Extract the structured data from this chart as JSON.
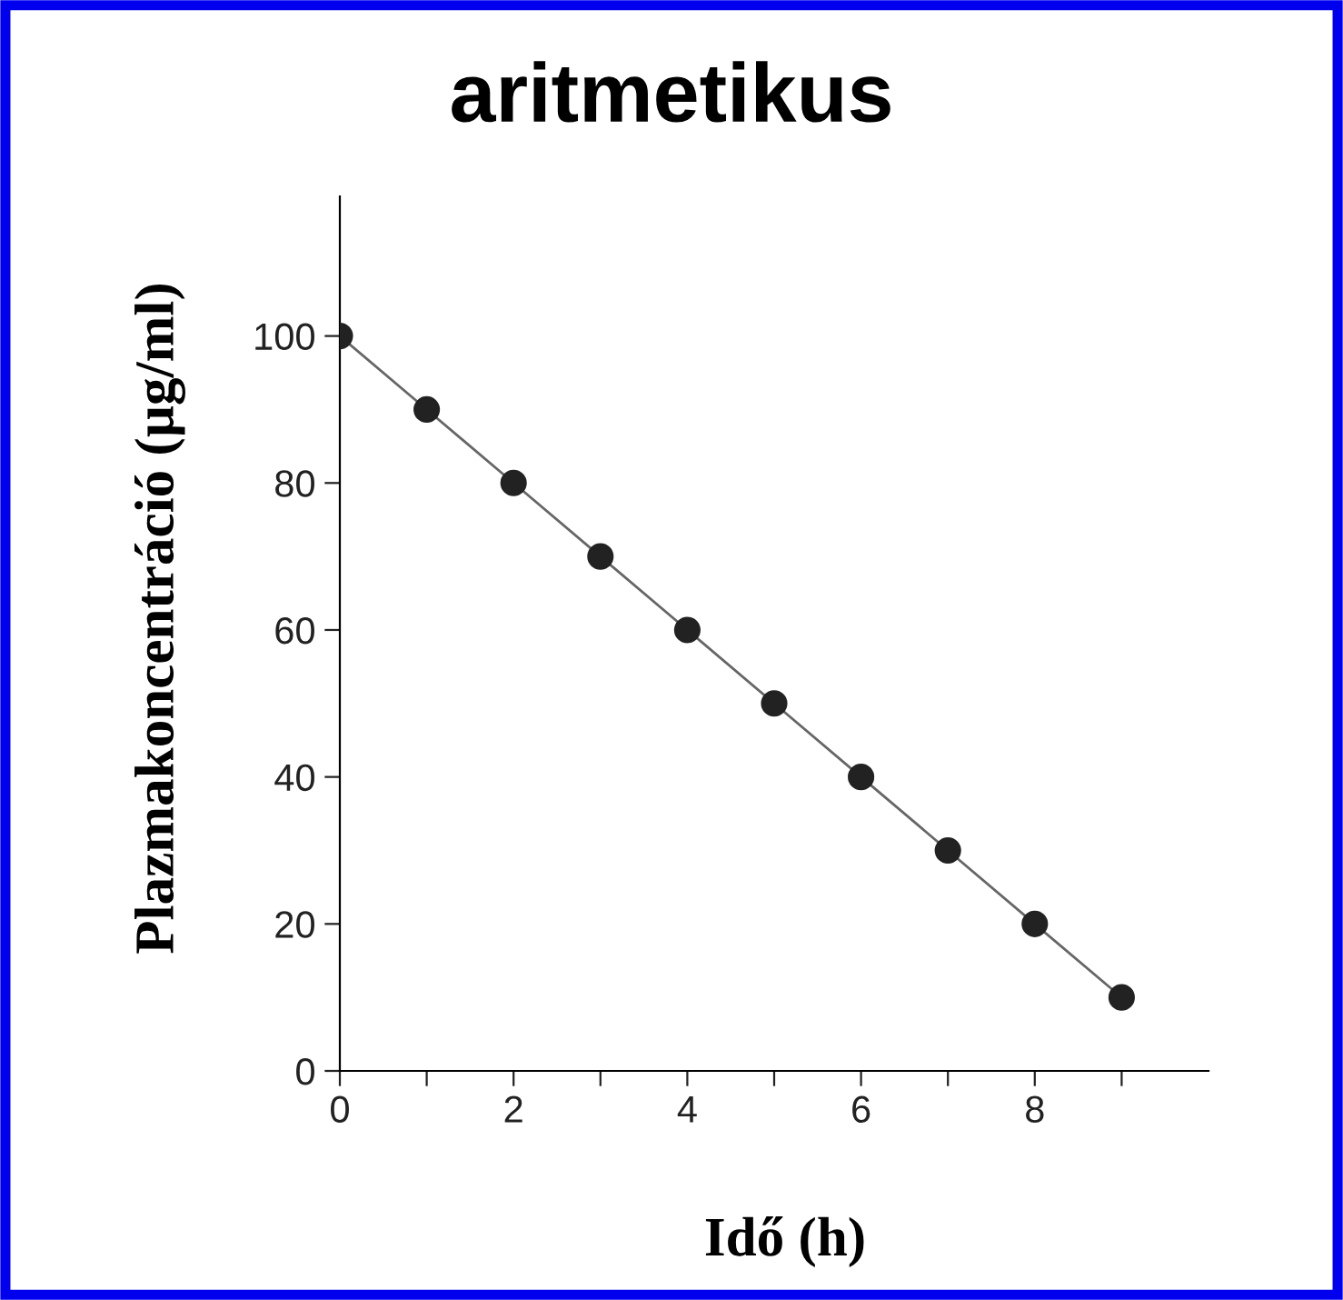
{
  "chart_data": {
    "type": "line",
    "title": "aritmetikus",
    "xlabel": "Idő (h)",
    "ylabel": "Plazmakoncentráció (µg/ml)",
    "x": [
      0,
      1,
      2,
      3,
      4,
      5,
      6,
      7,
      8,
      9
    ],
    "series": [
      {
        "color": "#222222",
        "values": [
          100,
          90,
          80,
          70,
          60,
          50,
          40,
          30,
          20,
          10
        ]
      }
    ],
    "marker": "circle",
    "line_style": "solid",
    "grid": false,
    "legend": false,
    "xlim": [
      0,
      10
    ],
    "xticks": [
      0,
      {
        "value": 1,
        "label": null
      },
      2,
      {
        "value": 3,
        "label": null
      },
      4,
      {
        "value": 5,
        "label": null
      },
      6,
      {
        "value": 7,
        "label": null
      },
      8,
      {
        "value": 9,
        "label": null
      }
    ],
    "ylim": [
      0,
      119
    ],
    "yticks": [
      0,
      20,
      40,
      60,
      80,
      100
    ]
  }
}
